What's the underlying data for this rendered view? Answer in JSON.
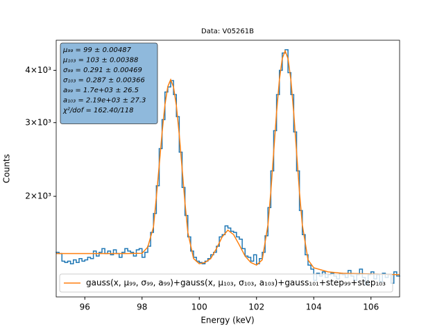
{
  "chart_data": {
    "type": "histogram",
    "title": "Data: V05261B",
    "xlabel": "Energy (keV)",
    "ylabel": "Counts",
    "yscale": "log",
    "xlim": [
      95,
      107
    ],
    "ylim": [
      1150,
      4720
    ],
    "xticks": [
      96,
      98,
      100,
      102,
      104,
      106
    ],
    "yticks": [
      {
        "value": 2000,
        "label": "2×10³"
      },
      {
        "value": 3000,
        "label": "3×10³"
      },
      {
        "value": 4000,
        "label": "4×10³"
      }
    ],
    "color": "#1f77b4",
    "bins": [
      95.0,
      95.1,
      95.2,
      95.3,
      95.4,
      95.5,
      95.6,
      95.7,
      95.8,
      95.9,
      96.0,
      96.1,
      96.2,
      96.3,
      96.4,
      96.5,
      96.6,
      96.7,
      96.8,
      96.9,
      97.0,
      97.1,
      97.2,
      97.3,
      97.4,
      97.5,
      97.6,
      97.7,
      97.8,
      97.9,
      98.0,
      98.1,
      98.2,
      98.3,
      98.4,
      98.5,
      98.6,
      98.7,
      98.8,
      98.9,
      99.0,
      99.1,
      99.2,
      99.3,
      99.4,
      99.5,
      99.6,
      99.7,
      99.8,
      99.9,
      100.0,
      100.1,
      100.2,
      100.3,
      100.4,
      100.5,
      100.6,
      100.7,
      100.8,
      100.9,
      101.0,
      101.1,
      101.2,
      101.3,
      101.4,
      101.5,
      101.6,
      101.7,
      101.8,
      101.9,
      102.0,
      102.1,
      102.2,
      102.3,
      102.4,
      102.5,
      102.6,
      102.7,
      102.8,
      102.9,
      103.0,
      103.1,
      103.2,
      103.3,
      103.4,
      103.5,
      103.6,
      103.7,
      103.8,
      103.9,
      104.0,
      104.1,
      104.2,
      104.3,
      104.4,
      104.5,
      104.6,
      104.7,
      104.8,
      104.9,
      105.0,
      105.1,
      105.2,
      105.3,
      105.4,
      105.5,
      105.6,
      105.7,
      105.8,
      105.9,
      106.0,
      106.1,
      106.2,
      106.3,
      106.4,
      106.5,
      106.6,
      106.7,
      106.8,
      106.9,
      107.0
    ],
    "values": [
      1470,
      1460,
      1400,
      1390,
      1400,
      1380,
      1410,
      1390,
      1420,
      1400,
      1410,
      1430,
      1420,
      1480,
      1440,
      1470,
      1500,
      1460,
      1480,
      1450,
      1490,
      1460,
      1430,
      1470,
      1500,
      1480,
      1470,
      1440,
      1490,
      1500,
      1430,
      1470,
      1520,
      1640,
      1820,
      2120,
      2600,
      3050,
      3550,
      3650,
      3780,
      3500,
      3100,
      2550,
      2100,
      1800,
      1600,
      1480,
      1430,
      1400,
      1390,
      1380,
      1400,
      1420,
      1450,
      1470,
      1520,
      1600,
      1620,
      1700,
      1680,
      1650,
      1640,
      1600,
      1580,
      1500,
      1440,
      1430,
      1400,
      1450,
      1380,
      1420,
      1470,
      1610,
      1880,
      2300,
      2870,
      3500,
      4000,
      4400,
      4480,
      3950,
      3500,
      2850,
      2300,
      1850,
      1620,
      1450,
      1370,
      1340,
      1260,
      1310,
      1290,
      1320,
      1280,
      1300,
      1310,
      1290,
      1270,
      1310,
      1300,
      1280,
      1330,
      1290,
      1260,
      1300,
      1340,
      1280,
      1230,
      1300,
      1320,
      1270,
      1300,
      1250,
      1310,
      1280,
      1300,
      1240,
      1320,
      1290
    ],
    "fit": {
      "name": "gauss(x, μ₉₉, σ₉₉, a₉₉)+gauss(x, μ₁₀₃, σ₁₀₃, a₁₀₃)+gauss₁₀₁+step₉₉+step₁₀₃",
      "color": "#ff7f0e",
      "x": [
        95,
        96,
        97,
        97.5,
        98,
        98.2,
        98.4,
        98.5,
        98.6,
        98.7,
        98.8,
        98.9,
        99,
        99.1,
        99.2,
        99.3,
        99.4,
        99.5,
        99.6,
        99.8,
        100,
        100.2,
        100.4,
        100.6,
        100.8,
        101,
        101.2,
        101.4,
        101.6,
        101.8,
        102,
        102.2,
        102.4,
        102.5,
        102.6,
        102.7,
        102.8,
        102.9,
        103,
        103.1,
        103.2,
        103.3,
        103.4,
        103.5,
        103.6,
        103.8,
        104,
        104.5,
        105,
        106,
        107
      ],
      "values": [
        1460,
        1460,
        1460,
        1460,
        1462,
        1513,
        1690,
        1993,
        2372,
        2836,
        3310,
        3660,
        3800,
        3650,
        3290,
        2810,
        2330,
        1930,
        1640,
        1420,
        1380,
        1390,
        1420,
        1500,
        1600,
        1660,
        1620,
        1530,
        1440,
        1390,
        1370,
        1410,
        1710,
        2050,
        2550,
        3170,
        3800,
        4270,
        4450,
        4270,
        3800,
        3170,
        2550,
        2050,
        1710,
        1410,
        1350,
        1320,
        1310,
        1305,
        1300
      ]
    },
    "legend_loc": "lower center",
    "annotation_lines": [
      "μ₉₉ = 99 ± 0.00487",
      "μ₁₀₃ = 103 ± 0.00388",
      "σ₉₉ = 0.291 ± 0.00469",
      "σ₁₀₃ = 0.287 ± 0.00366",
      "a₉₉ = 1.7e+03 ± 26.5",
      "a₁₀₃ = 2.19e+03 ± 27.3",
      "χ²/dof = 162.40/118"
    ]
  }
}
